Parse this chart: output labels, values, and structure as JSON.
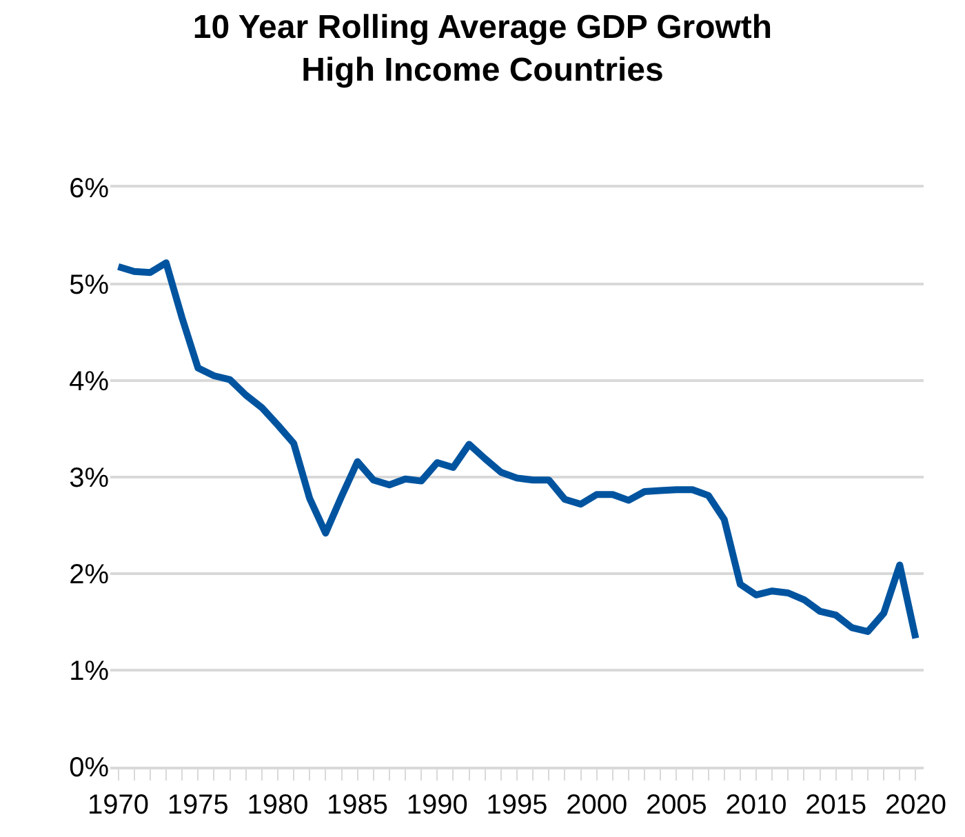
{
  "chart_data": {
    "type": "line",
    "title": "10 Year Rolling Average GDP Growth\nHigh Income Countries",
    "x": [
      1970,
      1971,
      1972,
      1973,
      1974,
      1975,
      1976,
      1977,
      1978,
      1979,
      1980,
      1981,
      1982,
      1983,
      1984,
      1985,
      1986,
      1987,
      1988,
      1989,
      1990,
      1991,
      1992,
      1993,
      1994,
      1995,
      1996,
      1997,
      1998,
      1999,
      2000,
      2001,
      2002,
      2003,
      2004,
      2005,
      2006,
      2007,
      2008,
      2009,
      2010,
      2011,
      2012,
      2013,
      2014,
      2015,
      2016,
      2017,
      2018,
      2019,
      2020
    ],
    "series": [
      {
        "color": "#00549f",
        "values": [
          5.18,
          5.13,
          5.12,
          5.22,
          4.65,
          4.13,
          4.05,
          4.01,
          3.85,
          3.72,
          3.54,
          3.35,
          2.78,
          2.42,
          2.8,
          3.16,
          2.97,
          2.92,
          2.98,
          2.96,
          3.15,
          3.1,
          3.34,
          3.19,
          3.05,
          2.99,
          2.97,
          2.97,
          2.77,
          2.72,
          2.82,
          2.82,
          2.76,
          2.85,
          2.86,
          2.87,
          2.87,
          2.81,
          2.56,
          1.89,
          1.78,
          1.82,
          1.8,
          1.73,
          1.61,
          1.57,
          1.44,
          1.4,
          1.59,
          2.09,
          1.33
        ]
      }
    ],
    "xlim": [
      1969.5,
      2020.5
    ],
    "xticks": [
      1970,
      1975,
      1980,
      1985,
      1990,
      1995,
      2000,
      2005,
      2010,
      2015,
      2020
    ],
    "ylim": [
      0,
      6
    ],
    "yticks": [
      {
        "value": 0,
        "label": "0%"
      },
      {
        "value": 1,
        "label": "1%"
      },
      {
        "value": 2,
        "label": "2%"
      },
      {
        "value": 3,
        "label": "3%"
      },
      {
        "value": 4,
        "label": "4%"
      },
      {
        "value": 5,
        "label": "5%"
      },
      {
        "value": 6,
        "label": "6%"
      }
    ],
    "grid": "y",
    "legend": false,
    "marker": "none",
    "line_style": "solid"
  }
}
